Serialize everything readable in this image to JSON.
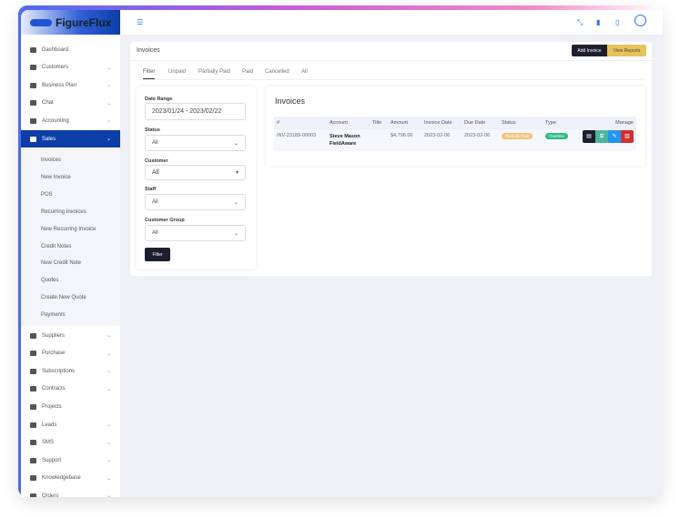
{
  "app": {
    "name": "FigureFlux"
  },
  "sidebar": {
    "items": [
      {
        "label": "Dashboard",
        "chevron": false
      },
      {
        "label": "Customers",
        "chevron": true
      },
      {
        "label": "Business Plan",
        "chevron": true
      },
      {
        "label": "Chat",
        "chevron": true
      },
      {
        "label": "Accounting",
        "chevron": true
      },
      {
        "label": "Sales",
        "chevron": true,
        "active": true
      }
    ],
    "sub_items": [
      "Invoices",
      "New Invoice",
      "POS",
      "Recurring Invoices",
      "New Recurring Invoice",
      "Credit Notes",
      "New Credit Note",
      "Quotes",
      "Create New Quote",
      "Payments"
    ],
    "items_after": [
      {
        "label": "Suppliers",
        "chevron": true
      },
      {
        "label": "Purchase",
        "chevron": true
      },
      {
        "label": "Subscriptions",
        "chevron": true
      },
      {
        "label": "Contracts",
        "chevron": true
      },
      {
        "label": "Projects",
        "chevron": false
      },
      {
        "label": "Leads",
        "chevron": true
      },
      {
        "label": "SMS",
        "chevron": true
      },
      {
        "label": "Support",
        "chevron": true
      },
      {
        "label": "Knowledgebase",
        "chevron": true
      },
      {
        "label": "Orders",
        "chevron": true
      }
    ]
  },
  "topbar": {
    "icons": [
      "menu-icon",
      "shuffle-icon",
      "file-icon",
      "clipboard-icon",
      "user-avatar-icon"
    ]
  },
  "page": {
    "title": "Invoices",
    "add_label": "Add Invoice",
    "reports_label": "View Reports",
    "tabs": [
      "Filter",
      "Unpaid",
      "Partially Paid",
      "Paid",
      "Cancelled",
      "All"
    ]
  },
  "filter": {
    "date_label": "Date Range",
    "date_value": "2023/01/24 - 2023/02/22",
    "status_label": "Status",
    "status_value": "All",
    "customer_label": "Customer",
    "customer_value": "All",
    "staff_label": "Staff",
    "staff_value": "All",
    "group_label": "Customer Group",
    "group_value": "All",
    "button": "Filter"
  },
  "invoices": {
    "title": "Invoices",
    "columns": [
      "#",
      "Account",
      "Title",
      "Amount",
      "Invoice Date",
      "Due Date",
      "Status",
      "Type",
      "Manage"
    ],
    "rows": [
      {
        "id": "INV-23189-00003",
        "account": "Steve Mason",
        "account2": "FieldAware",
        "title": "",
        "amount": "$4,796.00",
        "invoice_date": "2023-02-06",
        "due_date": "2023-02-06",
        "status": "Partially Paid",
        "type": "Onetime"
      }
    ]
  },
  "colors": {
    "primary": "#0d3ea8",
    "dark": "#1e1f2e",
    "warning": "#e8c35a",
    "status_partial": "#f5c27a",
    "type_onetime": "#2dbb85",
    "teal": "#4db6a3",
    "blue": "#2196f3",
    "red": "#d32f2f"
  }
}
